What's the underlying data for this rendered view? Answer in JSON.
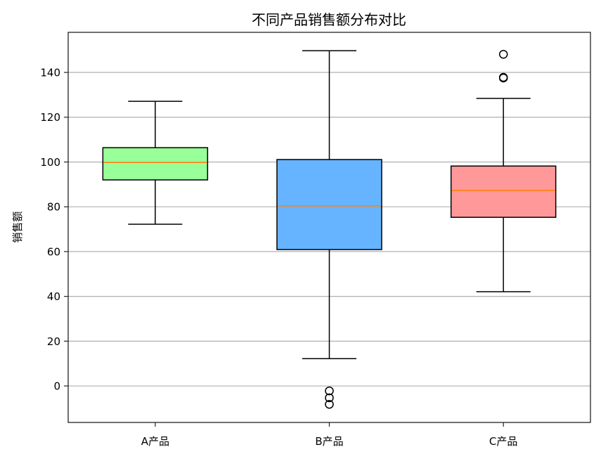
{
  "chart_data": {
    "type": "boxplot",
    "title": "不同产品销售额分布对比",
    "xlabel": "",
    "ylabel": "销售额",
    "ylim": [
      -16.3,
      157.9
    ],
    "yticks": [
      0,
      20,
      40,
      60,
      80,
      100,
      120,
      140
    ],
    "grid": {
      "axis": "y",
      "on": true,
      "color": "#b0b0b0"
    },
    "legend": null,
    "categories": [
      "A产品",
      "B产品",
      "C产品"
    ],
    "series": [
      {
        "name": "A产品",
        "color": "#99ff99",
        "whisker_low": 72.2,
        "q1": 92.0,
        "median": 99.8,
        "q3": 106.4,
        "whisker_high": 127.1,
        "outliers": []
      },
      {
        "name": "B产品",
        "color": "#66b3ff",
        "whisker_low": 12.2,
        "q1": 60.9,
        "median": 80.4,
        "q3": 101.1,
        "whisker_high": 149.7,
        "outliers": [
          -2.2,
          -5.3,
          -8.2
        ]
      },
      {
        "name": "C产品",
        "color": "#ff9999",
        "whisker_low": 42.1,
        "q1": 75.3,
        "median": 87.3,
        "q3": 98.2,
        "whisker_high": 128.4,
        "outliers": [
          148.1,
          137.8,
          137.5
        ]
      }
    ],
    "median_color": "#ff7f0e"
  }
}
